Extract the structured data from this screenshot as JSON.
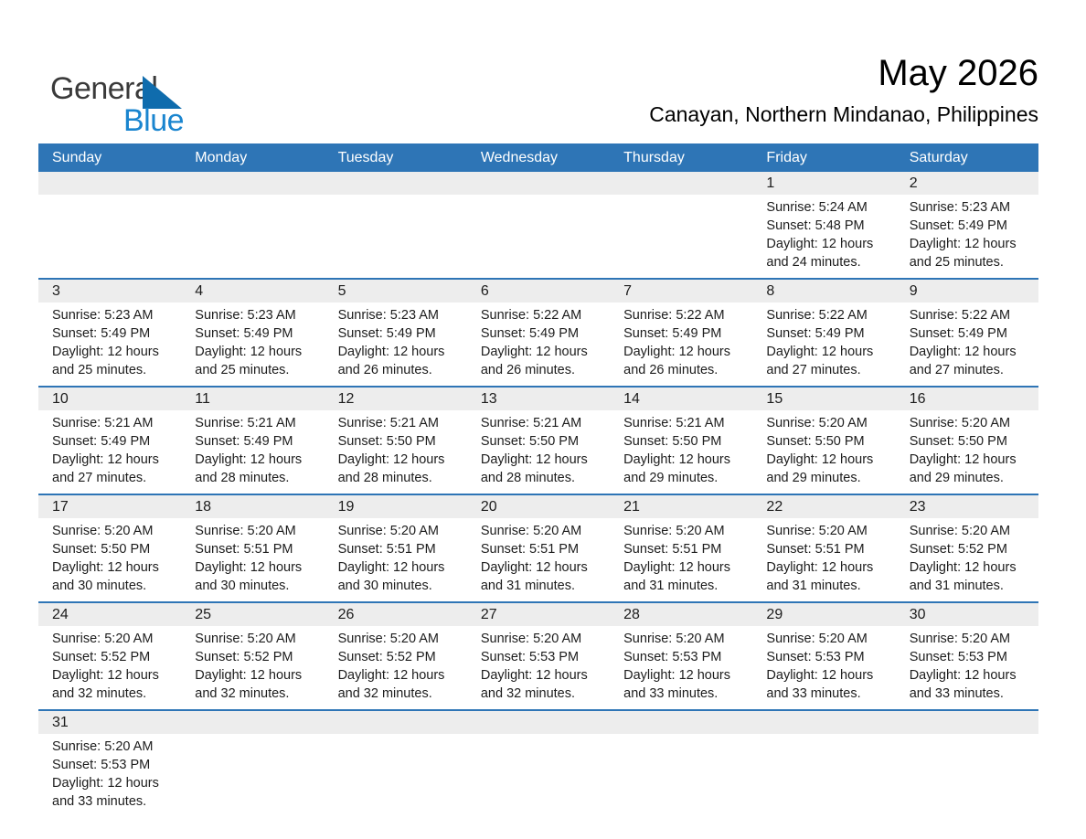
{
  "logo": {
    "general": "General",
    "blue": "Blue"
  },
  "titles": {
    "month_year": "May 2026",
    "location": "Canayan, Northern Mindanao, Philippines"
  },
  "colors": {
    "header_bg": "#2E75B6",
    "separator": "#2E75B6",
    "day_strip_bg": "#EDEDED",
    "body_text": "#1C1C1C",
    "header_text": "#FFFFFF",
    "logo_general": "#3A3A3A",
    "logo_blue": "#1A85CF",
    "logo_triangle": "#0F6CAD"
  },
  "weekdays": [
    "Sunday",
    "Monday",
    "Tuesday",
    "Wednesday",
    "Thursday",
    "Friday",
    "Saturday"
  ],
  "weeks": [
    [
      null,
      null,
      null,
      null,
      null,
      {
        "day": "1",
        "lines": [
          "Sunrise: 5:24 AM",
          "Sunset: 5:48 PM",
          "Daylight: 12 hours",
          "and 24 minutes."
        ]
      },
      {
        "day": "2",
        "lines": [
          "Sunrise: 5:23 AM",
          "Sunset: 5:49 PM",
          "Daylight: 12 hours",
          "and 25 minutes."
        ]
      }
    ],
    [
      {
        "day": "3",
        "lines": [
          "Sunrise: 5:23 AM",
          "Sunset: 5:49 PM",
          "Daylight: 12 hours",
          "and 25 minutes."
        ]
      },
      {
        "day": "4",
        "lines": [
          "Sunrise: 5:23 AM",
          "Sunset: 5:49 PM",
          "Daylight: 12 hours",
          "and 25 minutes."
        ]
      },
      {
        "day": "5",
        "lines": [
          "Sunrise: 5:23 AM",
          "Sunset: 5:49 PM",
          "Daylight: 12 hours",
          "and 26 minutes."
        ]
      },
      {
        "day": "6",
        "lines": [
          "Sunrise: 5:22 AM",
          "Sunset: 5:49 PM",
          "Daylight: 12 hours",
          "and 26 minutes."
        ]
      },
      {
        "day": "7",
        "lines": [
          "Sunrise: 5:22 AM",
          "Sunset: 5:49 PM",
          "Daylight: 12 hours",
          "and 26 minutes."
        ]
      },
      {
        "day": "8",
        "lines": [
          "Sunrise: 5:22 AM",
          "Sunset: 5:49 PM",
          "Daylight: 12 hours",
          "and 27 minutes."
        ]
      },
      {
        "day": "9",
        "lines": [
          "Sunrise: 5:22 AM",
          "Sunset: 5:49 PM",
          "Daylight: 12 hours",
          "and 27 minutes."
        ]
      }
    ],
    [
      {
        "day": "10",
        "lines": [
          "Sunrise: 5:21 AM",
          "Sunset: 5:49 PM",
          "Daylight: 12 hours",
          "and 27 minutes."
        ]
      },
      {
        "day": "11",
        "lines": [
          "Sunrise: 5:21 AM",
          "Sunset: 5:49 PM",
          "Daylight: 12 hours",
          "and 28 minutes."
        ]
      },
      {
        "day": "12",
        "lines": [
          "Sunrise: 5:21 AM",
          "Sunset: 5:50 PM",
          "Daylight: 12 hours",
          "and 28 minutes."
        ]
      },
      {
        "day": "13",
        "lines": [
          "Sunrise: 5:21 AM",
          "Sunset: 5:50 PM",
          "Daylight: 12 hours",
          "and 28 minutes."
        ]
      },
      {
        "day": "14",
        "lines": [
          "Sunrise: 5:21 AM",
          "Sunset: 5:50 PM",
          "Daylight: 12 hours",
          "and 29 minutes."
        ]
      },
      {
        "day": "15",
        "lines": [
          "Sunrise: 5:20 AM",
          "Sunset: 5:50 PM",
          "Daylight: 12 hours",
          "and 29 minutes."
        ]
      },
      {
        "day": "16",
        "lines": [
          "Sunrise: 5:20 AM",
          "Sunset: 5:50 PM",
          "Daylight: 12 hours",
          "and 29 minutes."
        ]
      }
    ],
    [
      {
        "day": "17",
        "lines": [
          "Sunrise: 5:20 AM",
          "Sunset: 5:50 PM",
          "Daylight: 12 hours",
          "and 30 minutes."
        ]
      },
      {
        "day": "18",
        "lines": [
          "Sunrise: 5:20 AM",
          "Sunset: 5:51 PM",
          "Daylight: 12 hours",
          "and 30 minutes."
        ]
      },
      {
        "day": "19",
        "lines": [
          "Sunrise: 5:20 AM",
          "Sunset: 5:51 PM",
          "Daylight: 12 hours",
          "and 30 minutes."
        ]
      },
      {
        "day": "20",
        "lines": [
          "Sunrise: 5:20 AM",
          "Sunset: 5:51 PM",
          "Daylight: 12 hours",
          "and 31 minutes."
        ]
      },
      {
        "day": "21",
        "lines": [
          "Sunrise: 5:20 AM",
          "Sunset: 5:51 PM",
          "Daylight: 12 hours",
          "and 31 minutes."
        ]
      },
      {
        "day": "22",
        "lines": [
          "Sunrise: 5:20 AM",
          "Sunset: 5:51 PM",
          "Daylight: 12 hours",
          "and 31 minutes."
        ]
      },
      {
        "day": "23",
        "lines": [
          "Sunrise: 5:20 AM",
          "Sunset: 5:52 PM",
          "Daylight: 12 hours",
          "and 31 minutes."
        ]
      }
    ],
    [
      {
        "day": "24",
        "lines": [
          "Sunrise: 5:20 AM",
          "Sunset: 5:52 PM",
          "Daylight: 12 hours",
          "and 32 minutes."
        ]
      },
      {
        "day": "25",
        "lines": [
          "Sunrise: 5:20 AM",
          "Sunset: 5:52 PM",
          "Daylight: 12 hours",
          "and 32 minutes."
        ]
      },
      {
        "day": "26",
        "lines": [
          "Sunrise: 5:20 AM",
          "Sunset: 5:52 PM",
          "Daylight: 12 hours",
          "and 32 minutes."
        ]
      },
      {
        "day": "27",
        "lines": [
          "Sunrise: 5:20 AM",
          "Sunset: 5:53 PM",
          "Daylight: 12 hours",
          "and 32 minutes."
        ]
      },
      {
        "day": "28",
        "lines": [
          "Sunrise: 5:20 AM",
          "Sunset: 5:53 PM",
          "Daylight: 12 hours",
          "and 33 minutes."
        ]
      },
      {
        "day": "29",
        "lines": [
          "Sunrise: 5:20 AM",
          "Sunset: 5:53 PM",
          "Daylight: 12 hours",
          "and 33 minutes."
        ]
      },
      {
        "day": "30",
        "lines": [
          "Sunrise: 5:20 AM",
          "Sunset: 5:53 PM",
          "Daylight: 12 hours",
          "and 33 minutes."
        ]
      }
    ],
    [
      {
        "day": "31",
        "lines": [
          "Sunrise: 5:20 AM",
          "Sunset: 5:53 PM",
          "Daylight: 12 hours",
          "and 33 minutes."
        ]
      },
      null,
      null,
      null,
      null,
      null,
      null
    ]
  ]
}
